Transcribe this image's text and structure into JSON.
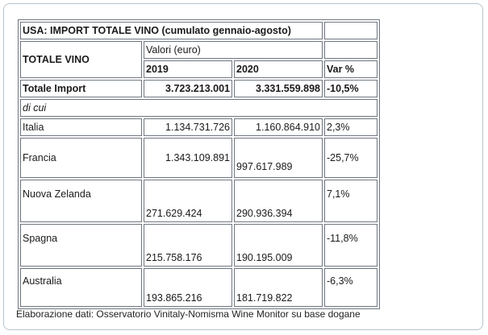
{
  "title": "USA: IMPORT TOTALE VINO (cumulato gennaio-agosto)",
  "header": {
    "row_label": "TOTALE VINO",
    "values_label": "Valori (euro)",
    "col_2019": "2019",
    "col_2020": "2020",
    "col_var": "Var %"
  },
  "total": {
    "label": "Totale Import",
    "v2019": "3.723.213.001",
    "v2020": "3.331.559.898",
    "var": "-10,5%"
  },
  "di_cui": "di cui",
  "rows": [
    {
      "country": "Italia",
      "v2019": "1.134.731.726",
      "v2020": "1.160.864.910",
      "var": "2,3%"
    },
    {
      "country": "Francia",
      "v2019": "1.343.109.891",
      "v2020": "997.617.989",
      "var": "-25,7%"
    },
    {
      "country": "Nuova Zelanda",
      "v2019": "271.629.424",
      "v2020": "290.936.394",
      "var": "7,1%"
    },
    {
      "country": "Spagna",
      "v2019": "215.758.176",
      "v2020": "190.195.009",
      "var": "-11,8%"
    },
    {
      "country": "Australia",
      "v2019": "193.865.216",
      "v2020": "181.719.822",
      "var": "-6,3%"
    }
  ],
  "footer": "Elaborazione dati: Osservatorio Vinitaly-Nomisma Wine Monitor su base dogane"
}
